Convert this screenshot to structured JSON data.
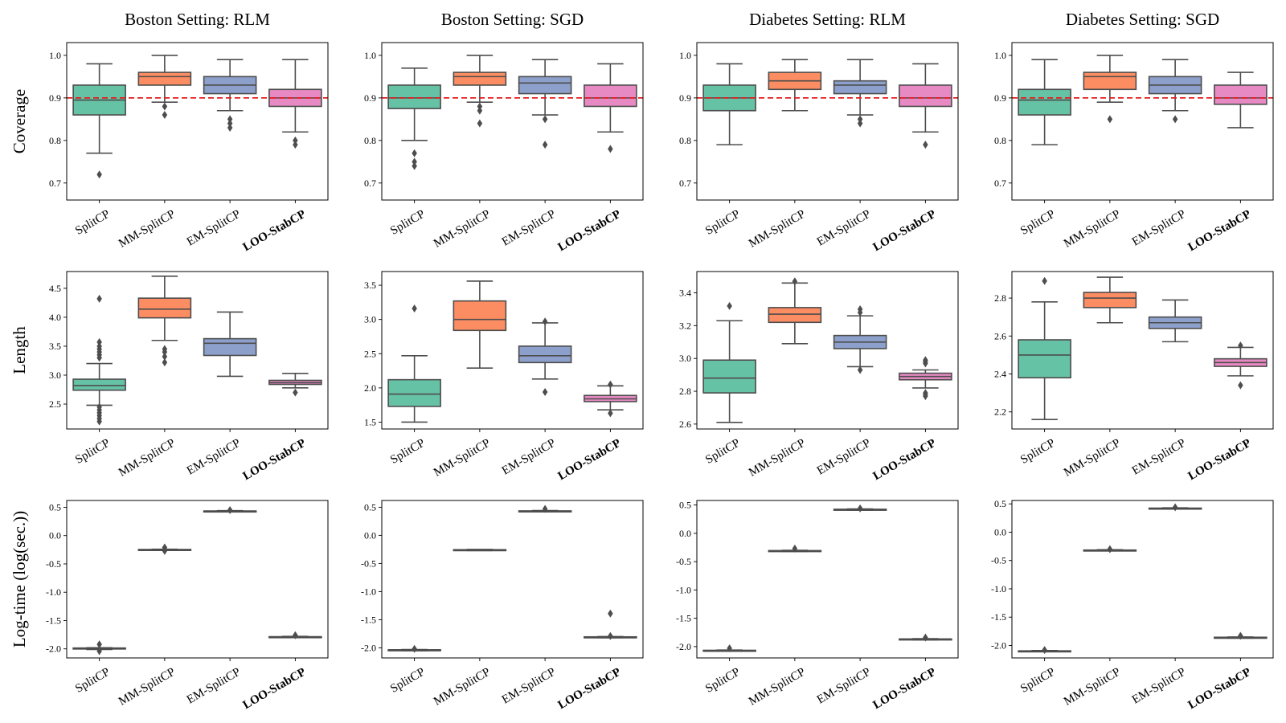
{
  "figure": {
    "col_titles": [
      "Boston Setting: RLM",
      "Boston Setting: SGD",
      "Diabetes Setting: RLM",
      "Diabetes Setting: SGD"
    ],
    "row_labels": [
      "Coverage",
      "Length",
      "Log-time (log(sec.))"
    ],
    "categories": [
      "SplitCP",
      "MM-SplitCP",
      "EM-SplitCP",
      "LOO-StabCP"
    ],
    "bold_category": "LOO-StabCP",
    "colors": [
      "#66c2a5",
      "#fc8d62",
      "#8da0cb",
      "#e78ac3"
    ],
    "edge_color": "#4d4d4d",
    "reference_color": "#e41a1c"
  },
  "chart_data": [
    {
      "type": "box",
      "title": "Boston Setting: RLM",
      "ylabel": "Coverage",
      "ylim": [
        0.66,
        1.03
      ],
      "yticks": [
        0.7,
        0.8,
        0.9,
        1.0
      ],
      "yticklabels": [
        "0.7",
        "0.8",
        "0.9",
        "1.0"
      ],
      "reference_line": 0.9,
      "boxes": [
        {
          "category": "SplitCP",
          "whislo": 0.77,
          "q1": 0.86,
          "med": 0.895,
          "q3": 0.93,
          "whishi": 0.98,
          "fliers": [
            0.72
          ]
        },
        {
          "category": "MM-SplitCP",
          "whislo": 0.89,
          "q1": 0.93,
          "med": 0.95,
          "q3": 0.96,
          "whishi": 1.0,
          "fliers": [
            0.86,
            0.88
          ]
        },
        {
          "category": "EM-SplitCP",
          "whislo": 0.87,
          "q1": 0.91,
          "med": 0.93,
          "q3": 0.95,
          "whishi": 0.99,
          "fliers": [
            0.83,
            0.84,
            0.85
          ]
        },
        {
          "category": "LOO-StabCP",
          "whislo": 0.82,
          "q1": 0.88,
          "med": 0.9,
          "q3": 0.92,
          "whishi": 0.99,
          "fliers": [
            0.79,
            0.8
          ]
        }
      ]
    },
    {
      "type": "box",
      "title": "Boston Setting: SGD",
      "ylabel": "Coverage",
      "ylim": [
        0.66,
        1.03
      ],
      "yticks": [
        0.7,
        0.8,
        0.9,
        1.0
      ],
      "yticklabels": [
        "0.7",
        "0.8",
        "0.9",
        "1.0"
      ],
      "reference_line": 0.9,
      "boxes": [
        {
          "category": "SplitCP",
          "whislo": 0.8,
          "q1": 0.875,
          "med": 0.9,
          "q3": 0.93,
          "whishi": 0.97,
          "fliers": [
            0.74,
            0.75,
            0.77
          ]
        },
        {
          "category": "MM-SplitCP",
          "whislo": 0.89,
          "q1": 0.93,
          "med": 0.95,
          "q3": 0.96,
          "whishi": 1.0,
          "fliers": [
            0.84,
            0.87,
            0.88
          ]
        },
        {
          "category": "EM-SplitCP",
          "whislo": 0.86,
          "q1": 0.91,
          "med": 0.935,
          "q3": 0.95,
          "whishi": 0.99,
          "fliers": [
            0.79,
            0.85
          ]
        },
        {
          "category": "LOO-StabCP",
          "whislo": 0.82,
          "q1": 0.88,
          "med": 0.9,
          "q3": 0.93,
          "whishi": 0.98,
          "fliers": [
            0.78
          ]
        }
      ]
    },
    {
      "type": "box",
      "title": "Diabetes Setting: RLM",
      "ylabel": "Coverage",
      "ylim": [
        0.66,
        1.03
      ],
      "yticks": [
        0.7,
        0.8,
        0.9,
        1.0
      ],
      "yticklabels": [
        "0.7",
        "0.8",
        "0.9",
        "1.0"
      ],
      "reference_line": 0.9,
      "boxes": [
        {
          "category": "SplitCP",
          "whislo": 0.79,
          "q1": 0.87,
          "med": 0.9,
          "q3": 0.93,
          "whishi": 0.98,
          "fliers": []
        },
        {
          "category": "MM-SplitCP",
          "whislo": 0.87,
          "q1": 0.92,
          "med": 0.94,
          "q3": 0.96,
          "whishi": 0.99,
          "fliers": []
        },
        {
          "category": "EM-SplitCP",
          "whislo": 0.86,
          "q1": 0.91,
          "med": 0.93,
          "q3": 0.94,
          "whishi": 0.99,
          "fliers": [
            0.84,
            0.85
          ]
        },
        {
          "category": "LOO-StabCP",
          "whislo": 0.82,
          "q1": 0.88,
          "med": 0.9,
          "q3": 0.93,
          "whishi": 0.98,
          "fliers": [
            0.79
          ]
        }
      ]
    },
    {
      "type": "box",
      "title": "Diabetes Setting: SGD",
      "ylabel": "Coverage",
      "ylim": [
        0.66,
        1.03
      ],
      "yticks": [
        0.7,
        0.8,
        0.9,
        1.0
      ],
      "yticklabels": [
        "0.7",
        "0.8",
        "0.9",
        "1.0"
      ],
      "reference_line": 0.9,
      "boxes": [
        {
          "category": "SplitCP",
          "whislo": 0.79,
          "q1": 0.86,
          "med": 0.895,
          "q3": 0.92,
          "whishi": 0.99,
          "fliers": []
        },
        {
          "category": "MM-SplitCP",
          "whislo": 0.89,
          "q1": 0.92,
          "med": 0.95,
          "q3": 0.96,
          "whishi": 1.0,
          "fliers": [
            0.85
          ]
        },
        {
          "category": "EM-SplitCP",
          "whislo": 0.87,
          "q1": 0.91,
          "med": 0.93,
          "q3": 0.95,
          "whishi": 0.99,
          "fliers": [
            0.85
          ]
        },
        {
          "category": "LOO-StabCP",
          "whislo": 0.83,
          "q1": 0.885,
          "med": 0.9,
          "q3": 0.93,
          "whishi": 0.96,
          "fliers": []
        }
      ]
    },
    {
      "type": "box",
      "title": "Boston Setting: RLM",
      "ylabel": "Length",
      "ylim": [
        2.07,
        4.79
      ],
      "yticks": [
        2.5,
        3.0,
        3.5,
        4.0,
        4.5
      ],
      "yticklabels": [
        "2.5",
        "3.0",
        "3.5",
        "4.0",
        "4.5"
      ],
      "reference_line": null,
      "boxes": [
        {
          "category": "SplitCP",
          "whislo": 2.48,
          "q1": 2.74,
          "med": 2.82,
          "q3": 2.93,
          "whishi": 3.2,
          "fliers": [
            2.2,
            2.25,
            2.3,
            2.35,
            2.4,
            2.45,
            3.3,
            3.35,
            3.4,
            3.45,
            3.5,
            3.57,
            4.32
          ]
        },
        {
          "category": "MM-SplitCP",
          "whislo": 3.6,
          "q1": 3.99,
          "med": 4.14,
          "q3": 4.33,
          "whishi": 4.71,
          "fliers": [
            3.22,
            3.32,
            3.4,
            3.45
          ]
        },
        {
          "category": "EM-SplitCP",
          "whislo": 2.98,
          "q1": 3.34,
          "med": 3.55,
          "q3": 3.63,
          "whishi": 4.09,
          "fliers": []
        },
        {
          "category": "LOO-StabCP",
          "whislo": 2.78,
          "q1": 2.84,
          "med": 2.87,
          "q3": 2.91,
          "whishi": 3.03,
          "fliers": [
            2.7
          ]
        }
      ]
    },
    {
      "type": "box",
      "title": "Boston Setting: SGD",
      "ylabel": "Length",
      "ylim": [
        1.4,
        3.7
      ],
      "yticks": [
        1.5,
        2.0,
        2.5,
        3.0,
        3.5
      ],
      "yticklabels": [
        "1.5",
        "2.0",
        "2.5",
        "3.0",
        "3.5"
      ],
      "reference_line": null,
      "boxes": [
        {
          "category": "SplitCP",
          "whislo": 1.5,
          "q1": 1.73,
          "med": 1.91,
          "q3": 2.12,
          "whishi": 2.47,
          "fliers": [
            3.16
          ]
        },
        {
          "category": "MM-SplitCP",
          "whislo": 2.29,
          "q1": 2.84,
          "med": 3.0,
          "q3": 3.27,
          "whishi": 3.56,
          "fliers": []
        },
        {
          "category": "EM-SplitCP",
          "whislo": 2.13,
          "q1": 2.37,
          "med": 2.47,
          "q3": 2.61,
          "whishi": 2.95,
          "fliers": [
            1.94,
            2.97
          ]
        },
        {
          "category": "LOO-StabCP",
          "whislo": 1.68,
          "q1": 1.8,
          "med": 1.84,
          "q3": 1.89,
          "whishi": 2.03,
          "fliers": [
            1.63,
            2.05
          ]
        }
      ]
    },
    {
      "type": "box",
      "title": "Diabetes Setting: RLM",
      "ylabel": "Length",
      "ylim": [
        2.57,
        3.53
      ],
      "yticks": [
        2.6,
        2.8,
        3.0,
        3.2,
        3.4
      ],
      "yticklabels": [
        "2.6",
        "2.8",
        "3.0",
        "3.2",
        "3.4"
      ],
      "reference_line": null,
      "boxes": [
        {
          "category": "SplitCP",
          "whislo": 2.61,
          "q1": 2.79,
          "med": 2.88,
          "q3": 2.99,
          "whishi": 3.23,
          "fliers": [
            3.32
          ]
        },
        {
          "category": "MM-SplitCP",
          "whislo": 3.09,
          "q1": 3.22,
          "med": 3.27,
          "q3": 3.31,
          "whishi": 3.46,
          "fliers": [
            3.47
          ]
        },
        {
          "category": "EM-SplitCP",
          "whislo": 2.95,
          "q1": 3.06,
          "med": 3.1,
          "q3": 3.14,
          "whishi": 3.26,
          "fliers": [
            2.93,
            3.28,
            3.3
          ]
        },
        {
          "category": "LOO-StabCP",
          "whislo": 2.82,
          "q1": 2.87,
          "med": 2.89,
          "q3": 2.91,
          "whishi": 2.93,
          "fliers": [
            2.77,
            2.78,
            2.79,
            2.97,
            2.98,
            2.99
          ]
        }
      ]
    },
    {
      "type": "box",
      "title": "Diabetes Setting: SGD",
      "ylabel": "Length",
      "ylim": [
        2.11,
        2.94
      ],
      "yticks": [
        2.2,
        2.4,
        2.6,
        2.8
      ],
      "yticklabels": [
        "2.2",
        "2.4",
        "2.6",
        "2.8"
      ],
      "reference_line": null,
      "boxes": [
        {
          "category": "SplitCP",
          "whislo": 2.16,
          "q1": 2.38,
          "med": 2.5,
          "q3": 2.58,
          "whishi": 2.78,
          "fliers": [
            2.89
          ]
        },
        {
          "category": "MM-SplitCP",
          "whislo": 2.67,
          "q1": 2.75,
          "med": 2.8,
          "q3": 2.83,
          "whishi": 2.91,
          "fliers": []
        },
        {
          "category": "EM-SplitCP",
          "whislo": 2.57,
          "q1": 2.64,
          "med": 2.67,
          "q3": 2.7,
          "whishi": 2.79,
          "fliers": []
        },
        {
          "category": "LOO-StabCP",
          "whislo": 2.39,
          "q1": 2.44,
          "med": 2.46,
          "q3": 2.48,
          "whishi": 2.54,
          "fliers": [
            2.34,
            2.55
          ]
        }
      ]
    },
    {
      "type": "box",
      "title": "Boston Setting: RLM",
      "ylabel": "Log-time (log(sec.))",
      "ylim": [
        -2.16,
        0.62
      ],
      "yticks": [
        -2.0,
        -1.5,
        -1.0,
        -0.5,
        0.0,
        0.5
      ],
      "yticklabels": [
        "-2.0",
        "-1.5",
        "-1.0",
        "-0.5",
        "0.0",
        "0.5"
      ],
      "reference_line": null,
      "boxes": [
        {
          "category": "SplitCP",
          "whislo": -2.01,
          "q1": -1.995,
          "med": -1.99,
          "q3": -1.985,
          "whishi": -1.98,
          "fliers": [
            -2.04,
            -1.92
          ]
        },
        {
          "category": "MM-SplitCP",
          "whislo": -0.26,
          "q1": -0.255,
          "med": -0.25,
          "q3": -0.245,
          "whishi": -0.24,
          "fliers": [
            -0.27,
            -0.21
          ]
        },
        {
          "category": "EM-SplitCP",
          "whislo": 0.42,
          "q1": 0.425,
          "med": 0.43,
          "q3": 0.435,
          "whishi": 0.44,
          "fliers": [
            0.45
          ]
        },
        {
          "category": "LOO-StabCP",
          "whislo": -1.8,
          "q1": -1.795,
          "med": -1.79,
          "q3": -1.785,
          "whishi": -1.78,
          "fliers": [
            -1.76
          ]
        }
      ]
    },
    {
      "type": "box",
      "title": "Boston Setting: SGD",
      "ylabel": "Log-time (log(sec.))",
      "ylim": [
        -2.18,
        0.62
      ],
      "yticks": [
        -2.0,
        -1.5,
        -1.0,
        -0.5,
        0.0,
        0.5
      ],
      "yticklabels": [
        "-2.0",
        "-1.5",
        "-1.0",
        "-0.5",
        "0.0",
        "0.5"
      ],
      "reference_line": null,
      "boxes": [
        {
          "category": "SplitCP",
          "whislo": -2.05,
          "q1": -2.045,
          "med": -2.04,
          "q3": -2.035,
          "whishi": -2.03,
          "fliers": [
            -2.02
          ]
        },
        {
          "category": "MM-SplitCP",
          "whislo": -0.27,
          "q1": -0.265,
          "med": -0.26,
          "q3": -0.255,
          "whishi": -0.25,
          "fliers": []
        },
        {
          "category": "EM-SplitCP",
          "whislo": 0.42,
          "q1": 0.425,
          "med": 0.43,
          "q3": 0.435,
          "whishi": 0.44,
          "fliers": [
            0.47
          ]
        },
        {
          "category": "LOO-StabCP",
          "whislo": -1.82,
          "q1": -1.815,
          "med": -1.81,
          "q3": -1.805,
          "whishi": -1.8,
          "fliers": [
            -1.39,
            -1.79
          ]
        }
      ]
    },
    {
      "type": "box",
      "title": "Diabetes Setting: RLM",
      "ylabel": "Log-time (log(sec.))",
      "ylim": [
        -2.2,
        0.58
      ],
      "yticks": [
        -2.0,
        -1.5,
        -1.0,
        -0.5,
        0.0,
        0.5
      ],
      "yticklabels": [
        "-2.0",
        "-1.5",
        "-1.0",
        "-0.5",
        "0.0",
        "0.5"
      ],
      "reference_line": null,
      "boxes": [
        {
          "category": "SplitCP",
          "whislo": -2.08,
          "q1": -2.075,
          "med": -2.07,
          "q3": -2.065,
          "whishi": -2.06,
          "fliers": [
            -2.03
          ]
        },
        {
          "category": "MM-SplitCP",
          "whislo": -0.32,
          "q1": -0.315,
          "med": -0.31,
          "q3": -0.305,
          "whishi": -0.3,
          "fliers": [
            -0.27
          ]
        },
        {
          "category": "EM-SplitCP",
          "whislo": 0.41,
          "q1": 0.415,
          "med": 0.42,
          "q3": 0.425,
          "whishi": 0.43,
          "fliers": [
            0.44
          ]
        },
        {
          "category": "LOO-StabCP",
          "whislo": -1.88,
          "q1": -1.875,
          "med": -1.87,
          "q3": -1.865,
          "whishi": -1.86,
          "fliers": [
            -1.84
          ]
        }
      ]
    },
    {
      "type": "box",
      "title": "Diabetes Setting: SGD",
      "ylabel": "Log-time (log(sec.))",
      "ylim": [
        -2.22,
        0.56
      ],
      "yticks": [
        -2.0,
        -1.5,
        -1.0,
        -0.5,
        0.0,
        0.5
      ],
      "yticklabels": [
        "-2.0",
        "-1.5",
        "-1.0",
        "-0.5",
        "0.0",
        "0.5"
      ],
      "reference_line": null,
      "boxes": [
        {
          "category": "SplitCP",
          "whislo": -2.11,
          "q1": -2.105,
          "med": -2.1,
          "q3": -2.095,
          "whishi": -2.09,
          "fliers": [
            -2.08
          ]
        },
        {
          "category": "MM-SplitCP",
          "whislo": -0.33,
          "q1": -0.325,
          "med": -0.32,
          "q3": -0.315,
          "whishi": -0.31,
          "fliers": [
            -0.3
          ]
        },
        {
          "category": "EM-SplitCP",
          "whislo": 0.41,
          "q1": 0.415,
          "med": 0.42,
          "q3": 0.425,
          "whishi": 0.43,
          "fliers": [
            0.44
          ]
        },
        {
          "category": "LOO-StabCP",
          "whislo": -1.87,
          "q1": -1.865,
          "med": -1.86,
          "q3": -1.855,
          "whishi": -1.85,
          "fliers": [
            -1.83
          ]
        }
      ]
    }
  ]
}
